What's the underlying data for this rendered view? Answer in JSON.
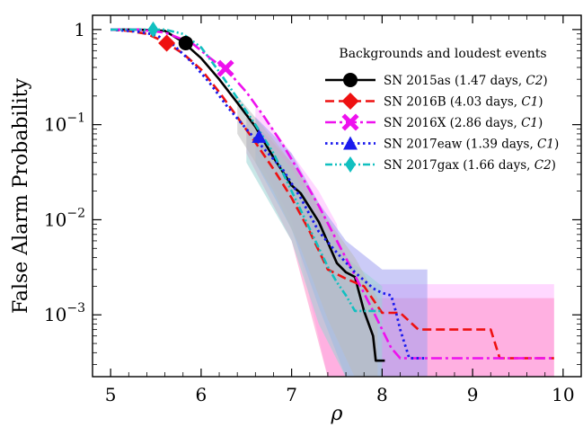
{
  "chart_data": {
    "type": "line",
    "xlabel": "ρ",
    "ylabel": "False Alarm Probability",
    "xlim": [
      4.8,
      10.2
    ],
    "ylim_log10": [
      -3.65,
      0.15
    ],
    "y_scale": "log",
    "xticks": [
      {
        "value": 5,
        "label": "5"
      },
      {
        "value": 6,
        "label": "6"
      },
      {
        "value": 7,
        "label": "7"
      },
      {
        "value": 8,
        "label": "8"
      },
      {
        "value": 9,
        "label": "9"
      },
      {
        "value": 10,
        "label": "10"
      }
    ],
    "yticks": [
      {
        "value": 1,
        "base": "1",
        "exp": ""
      },
      {
        "value": 0.1,
        "base": "10",
        "exp": "−1"
      },
      {
        "value": 0.01,
        "base": "10",
        "exp": "−2"
      },
      {
        "value": 0.001,
        "base": "10",
        "exp": "−3"
      }
    ],
    "legend": {
      "title": "Backgrounds and loudest events",
      "placement": "top-right"
    },
    "series": [
      {
        "name": "SN 2015as (1.47 days, C2)",
        "label_main": "SN 2015as (1.47 days, ",
        "label_class": "C2",
        "label_end": ")",
        "color": "#000000",
        "dash": "",
        "width": 2.6,
        "marker": "circle",
        "band_color": "#bbbbbb",
        "event": {
          "x": 5.83,
          "y": 0.72
        },
        "x": [
          5.0,
          5.3,
          5.6,
          5.8,
          6.0,
          6.2,
          6.4,
          6.6,
          6.8,
          7.0,
          7.1,
          7.3,
          7.5,
          7.6,
          7.7,
          7.8,
          7.9,
          7.93,
          8.03
        ],
        "y": [
          1.0,
          1.0,
          0.97,
          0.74,
          0.5,
          0.3,
          0.17,
          0.095,
          0.045,
          0.023,
          0.019,
          0.0095,
          0.0035,
          0.0028,
          0.0025,
          0.0011,
          0.0006,
          0.00033,
          0.00033
        ]
      },
      {
        "name": "SN 2016B (4.03 days, C1)",
        "label_main": "SN 2016B (4.03 days, ",
        "label_class": "C1",
        "label_end": ")",
        "color": "#ee1111",
        "dash": "10 5",
        "width": 2.6,
        "marker": "diamond",
        "band_color": "#ff8fc8",
        "event": {
          "x": 5.62,
          "y": 0.72
        },
        "x": [
          5.0,
          5.2,
          5.4,
          5.6,
          5.8,
          6.0,
          6.2,
          6.4,
          6.6,
          6.8,
          7.0,
          7.2,
          7.4,
          7.6,
          7.8,
          8.0,
          8.2,
          8.4,
          8.6,
          9.0,
          9.2,
          9.3,
          9.5,
          9.9
        ],
        "y": [
          1.0,
          0.97,
          0.9,
          0.74,
          0.56,
          0.38,
          0.22,
          0.12,
          0.065,
          0.034,
          0.017,
          0.0075,
          0.003,
          0.0024,
          0.002,
          0.00105,
          0.00105,
          0.0007,
          0.0007,
          0.0007,
          0.0007,
          0.00035,
          0.00035,
          0.00035
        ]
      },
      {
        "name": "SN 2016X (2.86 days, C1)",
        "label_main": "SN 2016X (2.86 days, ",
        "label_class": "C1",
        "label_end": ")",
        "color": "#ee11ee",
        "dash": "12 4 3 4",
        "width": 2.6,
        "marker": "x",
        "band_color": "#ffb8ff",
        "event": {
          "x": 6.27,
          "y": 0.39
        },
        "x": [
          5.0,
          5.3,
          5.6,
          5.9,
          6.1,
          6.3,
          6.5,
          6.7,
          6.9,
          7.1,
          7.3,
          7.5,
          7.7,
          7.9,
          8.0,
          8.1,
          8.2,
          8.3,
          8.6,
          9.0,
          9.5,
          9.9
        ],
        "y": [
          1.0,
          1.0,
          0.93,
          0.72,
          0.5,
          0.36,
          0.22,
          0.12,
          0.062,
          0.03,
          0.014,
          0.006,
          0.0026,
          0.0011,
          0.0007,
          0.00045,
          0.00035,
          0.00035,
          0.00035,
          0.00035,
          0.00035,
          0.00035
        ]
      },
      {
        "name": "SN 2017eaw (1.39 days, C1)",
        "label_main": "SN 2017eaw (1.39 days, ",
        "label_class": "C1",
        "label_end": ")",
        "color": "#1a1aee",
        "dash": "2.5 3.5",
        "width": 2.8,
        "marker": "triangle",
        "band_color": "#a0a0f0",
        "event": {
          "x": 6.64,
          "y": 0.075
        },
        "x": [
          5.0,
          5.3,
          5.5,
          5.7,
          5.9,
          6.1,
          6.3,
          6.5,
          6.7,
          6.9,
          7.1,
          7.3,
          7.5,
          7.7,
          7.9,
          8.0,
          8.1,
          8.15,
          8.2,
          8.3,
          8.5
        ],
        "y": [
          1.0,
          0.95,
          0.88,
          0.68,
          0.45,
          0.27,
          0.15,
          0.09,
          0.055,
          0.034,
          0.017,
          0.0075,
          0.0045,
          0.0028,
          0.0019,
          0.0017,
          0.0016,
          0.0011,
          0.0007,
          0.00035,
          0.00035
        ]
      },
      {
        "name": "SN 2017gax (1.66 days, C2)",
        "label_main": "SN 2017gax (1.66 days, ",
        "label_class": "C2",
        "label_end": ")",
        "color": "#11c0c0",
        "dash": "8 3 2 3 2 3",
        "width": 2.6,
        "marker": "thin-diamond",
        "band_color": "#9ad4d4",
        "event": {
          "x": 5.47,
          "y": 1.0
        },
        "x": [
          5.0,
          5.3,
          5.6,
          5.8,
          6.0,
          6.2,
          6.4,
          6.6,
          6.8,
          7.0,
          7.2,
          7.4,
          7.5,
          7.6,
          7.7,
          7.8,
          7.9,
          8.0
        ],
        "y": [
          1.0,
          1.0,
          1.0,
          0.9,
          0.65,
          0.36,
          0.19,
          0.1,
          0.05,
          0.02,
          0.008,
          0.0032,
          0.0022,
          0.0016,
          0.0011,
          0.0011,
          0.0011,
          0.0011
        ]
      }
    ],
    "bands": [
      {
        "series": "SN 2016X (2.86 days, C1)",
        "color": "#ffb8ff",
        "x": [
          6.6,
          7.0,
          7.3,
          7.5,
          7.6,
          7.6,
          8.0,
          9.9,
          9.9,
          8.0,
          7.6,
          7.4,
          7.0,
          6.6
        ],
        "y": [
          0.16,
          0.05,
          0.02,
          0.009,
          0.0021,
          0.0021,
          0.0021,
          0.0021,
          0.00022,
          0.00022,
          0.00022,
          0.00022,
          0.01,
          0.05
        ]
      },
      {
        "series": "SN 2016B (4.03 days, C1)",
        "color": "#ff8fc8",
        "x": [
          6.5,
          7.0,
          7.3,
          7.5,
          7.7,
          7.7,
          8.0,
          9.9,
          9.9,
          7.7,
          7.4,
          7.0,
          6.5
        ],
        "y": [
          0.13,
          0.04,
          0.013,
          0.006,
          0.003,
          0.0015,
          0.0015,
          0.0015,
          0.00022,
          0.00022,
          0.00022,
          0.006,
          0.05
        ]
      },
      {
        "series": "SN 2017eaw (1.39 days, C1)",
        "color": "#a0a0f0",
        "x": [
          6.6,
          7.0,
          7.3,
          7.6,
          8.0,
          8.5,
          8.5,
          8.0,
          7.6,
          7.3,
          7.0,
          6.6
        ],
        "y": [
          0.12,
          0.05,
          0.015,
          0.006,
          0.003,
          0.003,
          0.00022,
          0.00022,
          0.00022,
          0.0012,
          0.008,
          0.04
        ]
      },
      {
        "series": "SN 2017gax (1.66 days, C2)",
        "color": "#9ad4d4",
        "x": [
          6.5,
          7.0,
          7.3,
          7.6,
          8.0,
          8.0,
          7.6,
          7.3,
          7.0,
          6.5
        ],
        "y": [
          0.12,
          0.035,
          0.01,
          0.004,
          0.002,
          0.00022,
          0.00022,
          0.0008,
          0.006,
          0.04
        ]
      },
      {
        "series": "SN 2015as (1.47 days, C2)",
        "color": "#bbbbbb",
        "x": [
          6.4,
          6.8,
          7.1,
          7.4,
          7.7,
          7.95,
          7.95,
          7.7,
          7.4,
          7.1,
          6.8,
          6.4
        ],
        "y": [
          0.2,
          0.07,
          0.03,
          0.01,
          0.004,
          0.0015,
          0.00022,
          0.00022,
          0.0009,
          0.005,
          0.02,
          0.08
        ]
      }
    ]
  }
}
